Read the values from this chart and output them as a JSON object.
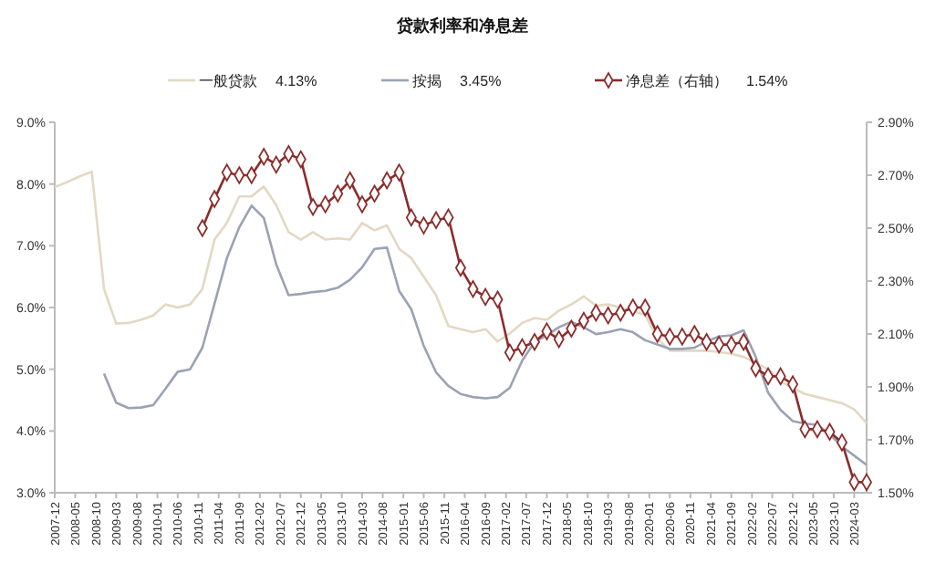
{
  "chart_data": {
    "type": "line",
    "title": "贷款利率和净息差",
    "x": [
      "2007-12",
      "2008-03",
      "2008-06",
      "2008-09",
      "2008-12",
      "2009-03",
      "2009-06",
      "2009-09",
      "2009-12",
      "2010-03",
      "2010-06",
      "2010-09",
      "2010-12",
      "2011-03",
      "2011-06",
      "2011-09",
      "2011-12",
      "2012-03",
      "2012-06",
      "2012-09",
      "2012-12",
      "2013-03",
      "2013-06",
      "2013-09",
      "2013-12",
      "2014-03",
      "2014-06",
      "2014-09",
      "2014-12",
      "2015-03",
      "2015-06",
      "2015-09",
      "2015-12",
      "2016-03",
      "2016-06",
      "2016-09",
      "2016-12",
      "2017-03",
      "2017-06",
      "2017-09",
      "2017-12",
      "2018-03",
      "2018-06",
      "2018-09",
      "2018-12",
      "2019-03",
      "2019-06",
      "2019-09",
      "2019-12",
      "2020-03",
      "2020-06",
      "2020-09",
      "2020-12",
      "2021-03",
      "2021-06",
      "2021-09",
      "2021-12",
      "2022-03",
      "2022-06",
      "2022-09",
      "2022-12",
      "2023-03",
      "2023-06",
      "2023-09",
      "2023-12",
      "2024-03",
      "2024-06"
    ],
    "series": [
      {
        "name": "一般贷款",
        "color": "#e3d8c3",
        "values": [
          7.95,
          8.03,
          8.12,
          8.2,
          6.3,
          5.74,
          5.75,
          5.8,
          5.87,
          6.05,
          6.0,
          6.05,
          6.3,
          7.1,
          7.37,
          7.8,
          7.8,
          7.96,
          7.66,
          7.22,
          7.1,
          7.22,
          7.1,
          7.12,
          7.1,
          7.37,
          7.25,
          7.33,
          6.95,
          6.8,
          6.5,
          6.2,
          5.7,
          5.65,
          5.6,
          5.65,
          5.45,
          5.58,
          5.75,
          5.83,
          5.8,
          5.95,
          6.05,
          6.18,
          6.03,
          6.05,
          6.0,
          5.94,
          5.88,
          5.5,
          5.3,
          5.3,
          5.3,
          5.3,
          5.28,
          5.25,
          5.2,
          5.1,
          5.0,
          4.8,
          4.7,
          4.6,
          4.55,
          4.5,
          4.45,
          4.35,
          4.13
        ]
      },
      {
        "name": "按揭",
        "color": "#9aa2b4",
        "values": [
          null,
          null,
          null,
          null,
          4.93,
          4.46,
          4.37,
          4.38,
          4.42,
          4.68,
          4.96,
          5.0,
          5.35,
          6.06,
          6.8,
          7.3,
          7.65,
          7.45,
          6.7,
          6.2,
          6.22,
          6.25,
          6.27,
          6.32,
          6.45,
          6.65,
          6.95,
          6.97,
          6.27,
          5.97,
          5.38,
          4.95,
          4.73,
          4.6,
          4.55,
          4.53,
          4.55,
          4.7,
          5.14,
          5.44,
          5.55,
          5.68,
          5.77,
          5.68,
          5.57,
          5.6,
          5.65,
          5.6,
          5.47,
          5.4,
          5.33,
          5.33,
          5.35,
          5.45,
          5.53,
          5.55,
          5.63,
          5.2,
          4.62,
          4.34,
          4.16,
          4.12,
          4.1,
          3.95,
          3.75,
          3.6,
          3.45
        ]
      },
      {
        "name": "净息差（右轴）",
        "color": "#8b2c2c",
        "axis": "y2",
        "marker": "diamond",
        "values": [
          null,
          null,
          null,
          null,
          null,
          null,
          null,
          null,
          null,
          null,
          null,
          null,
          2.5,
          2.61,
          2.71,
          2.7,
          2.7,
          2.77,
          2.74,
          2.78,
          2.76,
          2.58,
          2.59,
          2.63,
          2.68,
          2.59,
          2.63,
          2.68,
          2.71,
          2.54,
          2.51,
          2.53,
          2.54,
          2.35,
          2.27,
          2.24,
          2.23,
          2.03,
          2.05,
          2.07,
          2.11,
          2.08,
          2.12,
          2.15,
          2.18,
          2.17,
          2.18,
          2.2,
          2.2,
          2.1,
          2.09,
          2.09,
          2.1,
          2.07,
          2.06,
          2.06,
          2.07,
          1.97,
          1.94,
          1.94,
          1.91,
          1.74,
          1.74,
          1.73,
          1.69,
          1.54,
          1.54
        ]
      }
    ],
    "annotations": [
      "4.13%",
      "3.45%",
      "1.54%"
    ],
    "legend": "top",
    "xlim": [
      "2007-12",
      "2024-06"
    ],
    "xticks": [
      "2007-12",
      "2008-05",
      "2008-10",
      "2009-03",
      "2009-08",
      "2010-01",
      "2010-06",
      "2010-11",
      "2011-04",
      "2011-09",
      "2012-02",
      "2012-07",
      "2012-12",
      "2013-05",
      "2013-10",
      "2014-03",
      "2014-08",
      "2015-01",
      "2015-06",
      "2015-11",
      "2016-04",
      "2016-09",
      "2017-02",
      "2017-07",
      "2017-12",
      "2018-05",
      "2018-10",
      "2019-03",
      "2019-08",
      "2020-01",
      "2020-06",
      "2020-11",
      "2021-04",
      "2021-09",
      "2022-02",
      "2022-07",
      "2022-12",
      "2023-05",
      "2023-10",
      "2024-03"
    ],
    "ylim": [
      3,
      9
    ],
    "yticks": [
      {
        "value": 3,
        "label": "3.0%"
      },
      {
        "value": 4,
        "label": "4.0%"
      },
      {
        "value": 5,
        "label": "5.0%"
      },
      {
        "value": 6,
        "label": "6.0%"
      },
      {
        "value": 7,
        "label": "7.0%"
      },
      {
        "value": 8,
        "label": "8.0%"
      },
      {
        "value": 9,
        "label": "9.0%"
      }
    ],
    "y2lim": [
      1.5,
      2.9
    ],
    "y2ticks": [
      {
        "value": 1.5,
        "label": "1.50%"
      },
      {
        "value": 1.7,
        "label": "1.70%"
      },
      {
        "value": 1.9,
        "label": "1.90%"
      },
      {
        "value": 2.1,
        "label": "2.10%"
      },
      {
        "value": 2.3,
        "label": "2.30%"
      },
      {
        "value": 2.5,
        "label": "2.50%"
      },
      {
        "value": 2.7,
        "label": "2.70%"
      },
      {
        "value": 2.9,
        "label": "2.90%"
      }
    ],
    "grid": false
  }
}
